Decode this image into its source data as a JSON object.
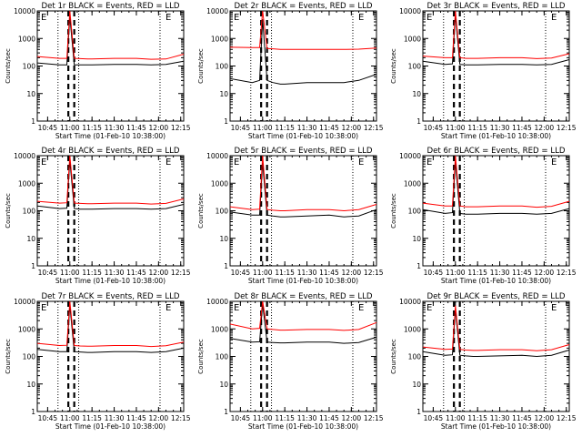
{
  "figure": {
    "background": "#ffffff",
    "axis_color": "#000000",
    "events_color": "#000000",
    "lld_color": "#ff0000"
  },
  "chart_data": [
    {
      "type": "line",
      "title": "Det 1r BLACK = Events, RED = LLD",
      "xlabel": "Start Time (01-Feb-10 10:38:00)",
      "ylabel": "Counts/sec",
      "yscale": "log",
      "ylim": [
        1,
        10000
      ],
      "xlim": [
        "10:38",
        "12:17"
      ],
      "xticks": [
        "10:45",
        "11:00",
        "11:15",
        "11:30",
        "11:45",
        "12:00",
        "12:15"
      ],
      "corner_labels": [
        "E",
        "E"
      ],
      "x": [
        "10:38",
        "10:53",
        "10:58",
        "11:00",
        "11:03",
        "11:07",
        "11:12",
        "11:15",
        "11:30",
        "11:45",
        "11:55",
        "12:05",
        "12:17"
      ],
      "series": [
        {
          "name": "BLACK = Events",
          "values": [
            130,
            110,
            110,
            6000,
            110,
            110,
            110,
            110,
            115,
            115,
            110,
            115,
            150
          ]
        },
        {
          "name": "RED = LLD",
          "values": [
            220,
            190,
            190,
            10000,
            190,
            185,
            180,
            180,
            190,
            190,
            175,
            180,
            270
          ]
        }
      ],
      "vlines_dotted": [
        "10:52",
        "11:06",
        "12:01"
      ],
      "vlines_dashed": [
        "10:59",
        "11:03"
      ]
    },
    {
      "type": "line",
      "title": "Det 2r BLACK = Events, RED = LLD",
      "xlabel": "Start Time (01-Feb-10 10:38:00)",
      "ylabel": "Counts/sec",
      "yscale": "log",
      "ylim": [
        1,
        10000
      ],
      "xlim": [
        "10:38",
        "12:17"
      ],
      "xticks": [
        "10:45",
        "11:00",
        "11:15",
        "11:30",
        "11:45",
        "12:00",
        "12:15"
      ],
      "corner_labels": [
        "E",
        "E"
      ],
      "x": [
        "10:38",
        "10:53",
        "10:58",
        "11:00",
        "11:03",
        "11:07",
        "11:12",
        "11:15",
        "11:30",
        "11:45",
        "11:55",
        "12:05",
        "12:17"
      ],
      "series": [
        {
          "name": "BLACK = Events",
          "values": [
            35,
            25,
            30,
            5000,
            30,
            25,
            22,
            22,
            25,
            25,
            25,
            30,
            50
          ]
        },
        {
          "name": "RED = LLD",
          "values": [
            480,
            470,
            470,
            10000,
            430,
            420,
            400,
            400,
            400,
            400,
            400,
            410,
            450
          ]
        }
      ],
      "vlines_dotted": [
        "10:52",
        "11:06",
        "12:01"
      ],
      "vlines_dashed": [
        "10:59",
        "11:03"
      ]
    },
    {
      "type": "line",
      "title": "Det 3r BLACK = Events, RED = LLD",
      "xlabel": "Start Time (01-Feb-10 10:38:00)",
      "ylabel": "Counts/sec",
      "yscale": "log",
      "ylim": [
        1,
        10000
      ],
      "xlim": [
        "10:38",
        "12:17"
      ],
      "xticks": [
        "10:45",
        "11:00",
        "11:15",
        "11:30",
        "11:45",
        "12:00",
        "12:15"
      ],
      "corner_labels": [
        "E",
        "E"
      ],
      "x": [
        "10:38",
        "10:53",
        "10:58",
        "11:00",
        "11:03",
        "11:07",
        "11:12",
        "11:15",
        "11:30",
        "11:45",
        "11:55",
        "12:05",
        "12:17"
      ],
      "series": [
        {
          "name": "BLACK = Events",
          "values": [
            150,
            115,
            120,
            7000,
            115,
            110,
            110,
            110,
            115,
            115,
            110,
            115,
            170
          ]
        },
        {
          "name": "RED = LLD",
          "values": [
            230,
            200,
            200,
            10000,
            200,
            190,
            190,
            190,
            200,
            200,
            185,
            195,
            280
          ]
        }
      ],
      "vlines_dotted": [
        "10:52",
        "11:06",
        "12:01"
      ],
      "vlines_dashed": [
        "10:59",
        "11:03"
      ]
    },
    {
      "type": "line",
      "title": "Det 4r BLACK = Events, RED = LLD",
      "xlabel": "Start Time (01-Feb-10 10:38:00)",
      "ylabel": "Counts/sec",
      "yscale": "log",
      "ylim": [
        1,
        10000
      ],
      "xlim": [
        "10:38",
        "12:17"
      ],
      "xticks": [
        "10:45",
        "11:00",
        "11:15",
        "11:30",
        "11:45",
        "12:00",
        "12:15"
      ],
      "corner_labels": [
        "E",
        "E"
      ],
      "x": [
        "10:38",
        "10:53",
        "10:58",
        "11:00",
        "11:03",
        "11:07",
        "11:12",
        "11:15",
        "11:30",
        "11:45",
        "11:55",
        "12:05",
        "12:17"
      ],
      "series": [
        {
          "name": "BLACK = Events",
          "values": [
            150,
            120,
            125,
            6500,
            120,
            115,
            115,
            115,
            120,
            120,
            115,
            120,
            170
          ]
        },
        {
          "name": "RED = LLD",
          "values": [
            220,
            190,
            195,
            10000,
            190,
            185,
            180,
            180,
            190,
            190,
            175,
            185,
            270
          ]
        }
      ],
      "vlines_dotted": [
        "10:52",
        "11:06",
        "12:01"
      ],
      "vlines_dashed": [
        "10:59",
        "11:03"
      ]
    },
    {
      "type": "line",
      "title": "Det 5r BLACK = Events, RED = LLD",
      "xlabel": "Start Time (01-Feb-10 10:38:00)",
      "ylabel": "Counts/sec",
      "yscale": "log",
      "ylim": [
        1,
        10000
      ],
      "xlim": [
        "10:38",
        "12:17"
      ],
      "xticks": [
        "10:45",
        "11:00",
        "11:15",
        "11:30",
        "11:45",
        "12:00",
        "12:15"
      ],
      "corner_labels": [
        "E",
        "E"
      ],
      "x": [
        "10:38",
        "10:53",
        "10:58",
        "11:00",
        "11:03",
        "11:07",
        "11:12",
        "11:15",
        "11:30",
        "11:45",
        "11:55",
        "12:05",
        "12:17"
      ],
      "series": [
        {
          "name": "BLACK = Events",
          "values": [
            90,
            70,
            70,
            5500,
            70,
            65,
            60,
            60,
            65,
            70,
            60,
            65,
            110
          ]
        },
        {
          "name": "RED = LLD",
          "values": [
            140,
            110,
            115,
            10000,
            110,
            105,
            100,
            100,
            110,
            110,
            100,
            110,
            170
          ]
        }
      ],
      "vlines_dotted": [
        "10:52",
        "11:06",
        "12:01"
      ],
      "vlines_dashed": [
        "10:59",
        "11:03"
      ]
    },
    {
      "type": "line",
      "title": "Det 6r BLACK = Events, RED = LLD",
      "xlabel": "Start Time (01-Feb-10 10:38:00)",
      "ylabel": "Counts/sec",
      "yscale": "log",
      "ylim": [
        1,
        10000
      ],
      "xlim": [
        "10:38",
        "12:17"
      ],
      "xticks": [
        "10:45",
        "11:00",
        "11:15",
        "11:30",
        "11:45",
        "12:00",
        "12:15"
      ],
      "corner_labels": [
        "E",
        "E"
      ],
      "x": [
        "10:38",
        "10:53",
        "10:58",
        "11:00",
        "11:03",
        "11:07",
        "11:12",
        "11:15",
        "11:30",
        "11:45",
        "11:55",
        "12:05",
        "12:17"
      ],
      "series": [
        {
          "name": "BLACK = Events",
          "values": [
            110,
            80,
            85,
            6000,
            80,
            75,
            75,
            75,
            80,
            80,
            75,
            80,
            120
          ]
        },
        {
          "name": "RED = LLD",
          "values": [
            190,
            150,
            150,
            10000,
            150,
            140,
            140,
            140,
            150,
            150,
            135,
            145,
            220
          ]
        }
      ],
      "vlines_dotted": [
        "10:52",
        "11:06",
        "12:01"
      ],
      "vlines_dashed": [
        "10:59",
        "11:03"
      ]
    },
    {
      "type": "line",
      "title": "Det 7r BLACK = Events, RED = LLD",
      "xlabel": "Start Time (01-Feb-10 10:38:00)",
      "ylabel": "Counts/sec",
      "yscale": "log",
      "ylim": [
        1,
        10000
      ],
      "xlim": [
        "10:38",
        "12:17"
      ],
      "xticks": [
        "10:45",
        "11:00",
        "11:15",
        "11:30",
        "11:45",
        "12:00",
        "12:15"
      ],
      "corner_labels": [
        "E",
        "E"
      ],
      "x": [
        "10:38",
        "10:53",
        "10:58",
        "11:00",
        "11:03",
        "11:07",
        "11:12",
        "11:15",
        "11:30",
        "11:45",
        "11:55",
        "12:05",
        "12:17"
      ],
      "series": [
        {
          "name": "BLACK = Events",
          "values": [
            180,
            150,
            150,
            7000,
            150,
            145,
            140,
            140,
            150,
            150,
            140,
            150,
            200
          ]
        },
        {
          "name": "RED = LLD",
          "values": [
            300,
            250,
            255,
            10000,
            250,
            240,
            235,
            235,
            250,
            250,
            230,
            245,
            330
          ]
        }
      ],
      "vlines_dotted": [
        "10:52",
        "11:06",
        "12:01"
      ],
      "vlines_dashed": [
        "10:59",
        "11:03"
      ]
    },
    {
      "type": "line",
      "title": "Det 8r BLACK = Events, RED = LLD",
      "xlabel": "Start Time (01-Feb-10 10:38:00)",
      "ylabel": "Counts/sec",
      "yscale": "log",
      "ylim": [
        1,
        10000
      ],
      "xlim": [
        "10:38",
        "12:17"
      ],
      "xticks": [
        "10:45",
        "11:00",
        "11:15",
        "11:30",
        "11:45",
        "12:00",
        "12:15"
      ],
      "corner_labels": [
        "E",
        "E"
      ],
      "x": [
        "10:38",
        "10:53",
        "10:58",
        "11:00",
        "11:03",
        "11:07",
        "11:12",
        "11:15",
        "11:30",
        "11:45",
        "11:55",
        "12:05",
        "12:17"
      ],
      "series": [
        {
          "name": "BLACK = Events",
          "values": [
            450,
            330,
            340,
            8000,
            330,
            320,
            310,
            310,
            330,
            330,
            300,
            320,
            500
          ]
        },
        {
          "name": "RED = LLD",
          "values": [
            1500,
            1000,
            1050,
            10000,
            1000,
            950,
            900,
            900,
            950,
            950,
            880,
            950,
            1700
          ]
        }
      ],
      "vlines_dotted": [
        "10:52",
        "11:06",
        "12:01"
      ],
      "vlines_dashed": [
        "10:59",
        "11:03"
      ]
    },
    {
      "type": "line",
      "title": "Det 9r BLACK = Events, RED = LLD",
      "xlabel": "Start Time (01-Feb-10 10:38:00)",
      "ylabel": "Counts/sec",
      "yscale": "log",
      "ylim": [
        1,
        10000
      ],
      "xlim": [
        "10:38",
        "12:17"
      ],
      "xticks": [
        "10:45",
        "11:00",
        "11:15",
        "11:30",
        "11:45",
        "12:00",
        "12:15"
      ],
      "corner_labels": [
        "E",
        "E"
      ],
      "x": [
        "10:38",
        "10:53",
        "10:58",
        "11:00",
        "11:03",
        "11:07",
        "11:12",
        "11:15",
        "11:30",
        "11:45",
        "11:55",
        "12:05",
        "12:17"
      ],
      "series": [
        {
          "name": "BLACK = Events",
          "values": [
            150,
            110,
            115,
            5000,
            110,
            105,
            100,
            100,
            105,
            110,
            100,
            110,
            170
          ]
        },
        {
          "name": "RED = LLD",
          "values": [
            220,
            180,
            185,
            7000,
            180,
            170,
            165,
            165,
            175,
            175,
            160,
            175,
            270
          ]
        }
      ],
      "vlines_dotted": [
        "10:52",
        "11:06",
        "12:01"
      ],
      "vlines_dashed": [
        "10:59",
        "11:03"
      ]
    }
  ]
}
